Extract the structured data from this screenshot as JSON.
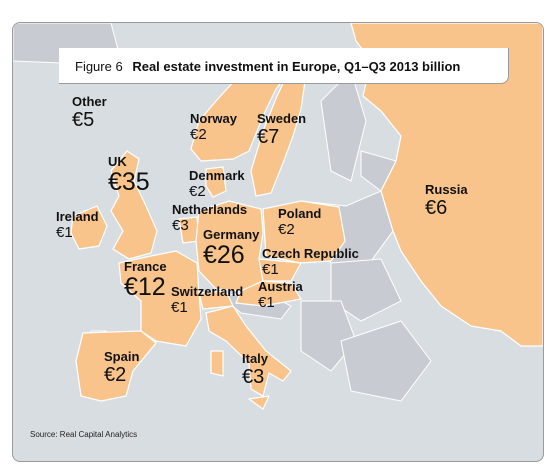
{
  "title": {
    "number": "Figure 6",
    "text": "Real estate investment in Europe, Q1–Q3 2013 billion"
  },
  "source": "Source: Real Capital Analytics",
  "colors": {
    "highlight": "#f8c48b",
    "land": "#c8ccd2",
    "sea": "#d8dde2",
    "borders": "#ffffff"
  },
  "countries": [
    {
      "key": "other",
      "name": "Other",
      "value": "€5"
    },
    {
      "key": "uk",
      "name": "UK",
      "value": "€35"
    },
    {
      "key": "ireland",
      "name": "Ireland",
      "value": "€1"
    },
    {
      "key": "norway",
      "name": "Norway",
      "value": "€2"
    },
    {
      "key": "sweden",
      "name": "Sweden",
      "value": "€7"
    },
    {
      "key": "denmark",
      "name": "Denmark",
      "value": "€2"
    },
    {
      "key": "netherlands",
      "name": "Netherlands",
      "value": "€3"
    },
    {
      "key": "germany",
      "name": "Germany",
      "value": "€26"
    },
    {
      "key": "poland",
      "name": "Poland",
      "value": "€2"
    },
    {
      "key": "czech",
      "name": "Czech Republic",
      "value": "€1"
    },
    {
      "key": "france",
      "name": "France",
      "value": "€12"
    },
    {
      "key": "switzerland",
      "name": "Switzerland",
      "value": "€1"
    },
    {
      "key": "austria",
      "name": "Austria",
      "value": "€1"
    },
    {
      "key": "spain",
      "name": "Spain",
      "value": "€2"
    },
    {
      "key": "italy",
      "name": "Italy",
      "value": "€3"
    },
    {
      "key": "russia",
      "name": "Russia",
      "value": "€6"
    }
  ]
}
